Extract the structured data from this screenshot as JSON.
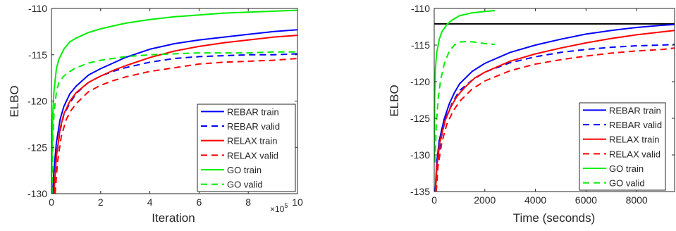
{
  "chart_data": [
    {
      "type": "line",
      "xlabel": "Iteration",
      "ylabel": "ELBO",
      "x_multiplier_label": {
        "base": "×10",
        "exp": "5"
      },
      "xlim": [
        0,
        10
      ],
      "ylim": [
        -130,
        -110
      ],
      "xticks": [
        0,
        2,
        4,
        6,
        8,
        10
      ],
      "yticks": [
        -130,
        -125,
        -120,
        -115,
        -110
      ],
      "grid": false,
      "legend_position": "bottom-right",
      "series": [
        {
          "name": "REBAR train",
          "color": "#0000ff",
          "dash": "solid",
          "x": [
            0.05,
            0.1,
            0.2,
            0.35,
            0.5,
            0.75,
            1,
            1.5,
            2,
            2.5,
            3,
            4,
            5,
            6,
            7,
            8,
            9,
            10
          ],
          "y": [
            -130,
            -127.5,
            -124.5,
            -122,
            -120.6,
            -119.2,
            -118.4,
            -117.2,
            -116.5,
            -115.9,
            -115.3,
            -114.4,
            -113.8,
            -113.4,
            -113.1,
            -112.8,
            -112.5,
            -112.3
          ]
        },
        {
          "name": "REBAR valid",
          "color": "#0000ff",
          "dash": "dashed",
          "x": [
            0.1,
            0.2,
            0.35,
            0.5,
            0.75,
            1,
            1.5,
            2,
            2.5,
            3,
            4,
            5,
            6,
            7,
            8,
            9,
            10
          ],
          "y": [
            -130,
            -126,
            -123.2,
            -121.5,
            -120.2,
            -119.2,
            -118,
            -117.3,
            -116.8,
            -116.4,
            -115.8,
            -115.4,
            -115.2,
            -115.1,
            -115,
            -115,
            -114.9
          ]
        },
        {
          "name": "RELAX train",
          "color": "#ff0000",
          "dash": "solid",
          "x": [
            0.1,
            0.2,
            0.35,
            0.5,
            0.75,
            1,
            1.5,
            2,
            2.5,
            3,
            4,
            5,
            6,
            7,
            8,
            9,
            10
          ],
          "y": [
            -130,
            -126,
            -123,
            -121.4,
            -120,
            -119.1,
            -118,
            -117.3,
            -116.7,
            -116.2,
            -115.3,
            -114.6,
            -114.1,
            -113.7,
            -113.4,
            -113.1,
            -112.9
          ]
        },
        {
          "name": "RELAX valid",
          "color": "#ff0000",
          "dash": "dashed",
          "x": [
            0.15,
            0.25,
            0.4,
            0.6,
            0.8,
            1,
            1.5,
            2,
            2.5,
            3,
            4,
            5,
            6,
            7,
            8,
            9,
            10
          ],
          "y": [
            -130,
            -126.5,
            -123.8,
            -122,
            -121,
            -120.3,
            -119,
            -118.3,
            -117.8,
            -117.4,
            -116.8,
            -116.4,
            -116,
            -115.8,
            -115.7,
            -115.6,
            -115.4
          ]
        },
        {
          "name": "GO train",
          "color": "#00ee00",
          "dash": "solid",
          "x": [
            0,
            0.03,
            0.06,
            0.1,
            0.2,
            0.3,
            0.5,
            0.75,
            1,
            1.5,
            2,
            3,
            4,
            5,
            6,
            7,
            8,
            9,
            10
          ],
          "y": [
            -130,
            -124,
            -121,
            -119,
            -116.5,
            -115.5,
            -114.4,
            -113.6,
            -113.2,
            -112.6,
            -112.2,
            -111.6,
            -111.2,
            -110.9,
            -110.7,
            -110.5,
            -110.4,
            -110.3,
            -110.2
          ]
        },
        {
          "name": "GO valid",
          "color": "#00ee00",
          "dash": "dashed",
          "x": [
            0.02,
            0.05,
            0.1,
            0.2,
            0.3,
            0.5,
            0.75,
            1,
            1.5,
            2,
            3,
            4,
            5,
            6,
            7,
            8,
            9,
            10
          ],
          "y": [
            -130,
            -125,
            -121.5,
            -119,
            -118,
            -117.3,
            -116.8,
            -116.4,
            -115.9,
            -115.6,
            -115.2,
            -115,
            -114.9,
            -114.8,
            -114.8,
            -114.8,
            -114.7,
            -114.7
          ]
        }
      ]
    },
    {
      "type": "line",
      "xlabel": "Time (seconds)",
      "ylabel": "ELBO",
      "xlim": [
        0,
        9500
      ],
      "ylim": [
        -135,
        -110
      ],
      "xticks": [
        0,
        2000,
        4000,
        6000,
        8000
      ],
      "yticks": [
        -135,
        -130,
        -125,
        -120,
        -115,
        -110
      ],
      "grid": false,
      "legend_position": "bottom-right",
      "reference_line": {
        "y": -112.1,
        "color": "#000000"
      },
      "series": [
        {
          "name": "REBAR train",
          "color": "#0000ff",
          "dash": "solid",
          "x": [
            40,
            100,
            200,
            400,
            600,
            800,
            1000,
            1500,
            2000,
            3000,
            4000,
            5000,
            6000,
            7000,
            8000,
            9000,
            9500
          ],
          "y": [
            -135,
            -131,
            -128,
            -125,
            -123,
            -121.5,
            -120.3,
            -118.6,
            -117.5,
            -116,
            -115,
            -114.2,
            -113.5,
            -113,
            -112.6,
            -112.3,
            -112.2
          ]
        },
        {
          "name": "REBAR valid",
          "color": "#0000ff",
          "dash": "dashed",
          "x": [
            60,
            120,
            250,
            450,
            700,
            1000,
            1500,
            2000,
            3000,
            4000,
            5000,
            6000,
            7000,
            8000,
            9000,
            9500
          ],
          "y": [
            -135,
            -131.5,
            -128,
            -125,
            -123,
            -121.2,
            -119.8,
            -118.7,
            -117.4,
            -116.6,
            -116,
            -115.6,
            -115.3,
            -115.1,
            -115,
            -114.9
          ]
        },
        {
          "name": "RELAX train",
          "color": "#ff0000",
          "dash": "solid",
          "x": [
            50,
            110,
            220,
            420,
            650,
            900,
            1200,
            1600,
            2000,
            3000,
            4000,
            5000,
            6000,
            7000,
            8000,
            9000,
            9500
          ],
          "y": [
            -135,
            -131.5,
            -128.3,
            -125.4,
            -123.5,
            -122,
            -120.8,
            -119.5,
            -118.7,
            -117.2,
            -116.2,
            -115.4,
            -114.7,
            -114.1,
            -113.6,
            -113.2,
            -113
          ]
        },
        {
          "name": "RELAX valid",
          "color": "#ff0000",
          "dash": "dashed",
          "x": [
            80,
            150,
            300,
            500,
            750,
            1000,
            1500,
            2000,
            3000,
            4000,
            5000,
            6000,
            7000,
            8000,
            9000,
            9500
          ],
          "y": [
            -135,
            -131.5,
            -128.3,
            -125.8,
            -124,
            -122.7,
            -121,
            -119.9,
            -118.5,
            -117.6,
            -117,
            -116.5,
            -116.1,
            -115.8,
            -115.6,
            -115.4
          ]
        },
        {
          "name": "GO train",
          "color": "#00ee00",
          "dash": "solid",
          "x": [
            0,
            20,
            50,
            100,
            200,
            300,
            500,
            700,
            1000,
            1500,
            2000,
            2400
          ],
          "y": [
            -131,
            -122,
            -118,
            -116,
            -114.2,
            -113.2,
            -112.2,
            -111.6,
            -111,
            -110.6,
            -110.4,
            -110.3
          ]
        },
        {
          "name": "GO valid",
          "color": "#00ee00",
          "dash": "dashed",
          "x": [
            30,
            80,
            150,
            250,
            400,
            600,
            800,
            1000,
            1300,
            1600,
            2000,
            2400
          ],
          "y": [
            -131,
            -126,
            -122.5,
            -119.8,
            -117.5,
            -115.8,
            -115,
            -114.6,
            -114.5,
            -114.6,
            -114.8,
            -114.9
          ]
        }
      ]
    }
  ]
}
